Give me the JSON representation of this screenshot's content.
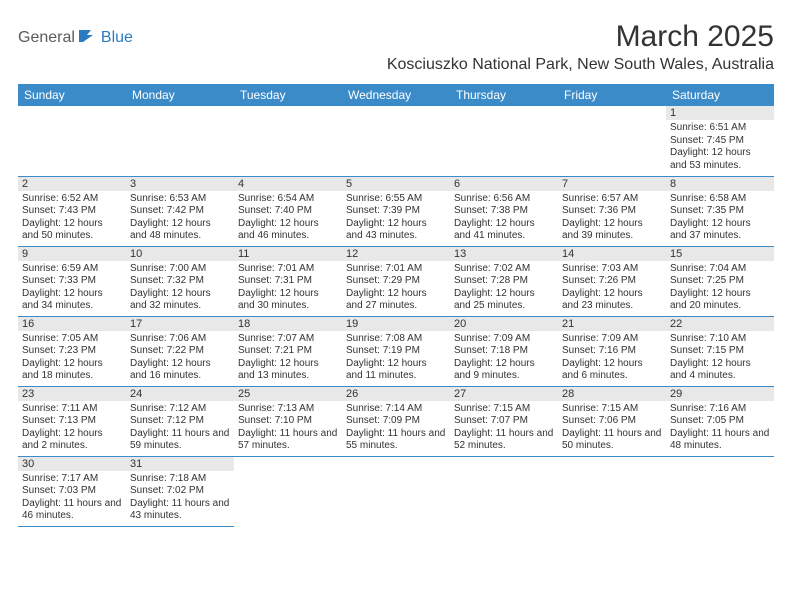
{
  "logo": {
    "general": "General",
    "blue": "Blue"
  },
  "title": "March 2025",
  "subtitle": "Kosciuszko National Park, New South Wales, Australia",
  "colors": {
    "header_bg": "#3b8bc9",
    "header_text": "#ffffff",
    "daynum_bg": "#e8e8e8",
    "border": "#3b8bc9",
    "text": "#333333",
    "logo_gray": "#5a5a5a",
    "logo_blue": "#2b7bbf"
  },
  "weekdays": [
    "Sunday",
    "Monday",
    "Tuesday",
    "Wednesday",
    "Thursday",
    "Friday",
    "Saturday"
  ],
  "weeks": [
    [
      null,
      null,
      null,
      null,
      null,
      null,
      {
        "day": "1",
        "sunrise": "Sunrise: 6:51 AM",
        "sunset": "Sunset: 7:45 PM",
        "daylight": "Daylight: 12 hours and 53 minutes."
      }
    ],
    [
      {
        "day": "2",
        "sunrise": "Sunrise: 6:52 AM",
        "sunset": "Sunset: 7:43 PM",
        "daylight": "Daylight: 12 hours and 50 minutes."
      },
      {
        "day": "3",
        "sunrise": "Sunrise: 6:53 AM",
        "sunset": "Sunset: 7:42 PM",
        "daylight": "Daylight: 12 hours and 48 minutes."
      },
      {
        "day": "4",
        "sunrise": "Sunrise: 6:54 AM",
        "sunset": "Sunset: 7:40 PM",
        "daylight": "Daylight: 12 hours and 46 minutes."
      },
      {
        "day": "5",
        "sunrise": "Sunrise: 6:55 AM",
        "sunset": "Sunset: 7:39 PM",
        "daylight": "Daylight: 12 hours and 43 minutes."
      },
      {
        "day": "6",
        "sunrise": "Sunrise: 6:56 AM",
        "sunset": "Sunset: 7:38 PM",
        "daylight": "Daylight: 12 hours and 41 minutes."
      },
      {
        "day": "7",
        "sunrise": "Sunrise: 6:57 AM",
        "sunset": "Sunset: 7:36 PM",
        "daylight": "Daylight: 12 hours and 39 minutes."
      },
      {
        "day": "8",
        "sunrise": "Sunrise: 6:58 AM",
        "sunset": "Sunset: 7:35 PM",
        "daylight": "Daylight: 12 hours and 37 minutes."
      }
    ],
    [
      {
        "day": "9",
        "sunrise": "Sunrise: 6:59 AM",
        "sunset": "Sunset: 7:33 PM",
        "daylight": "Daylight: 12 hours and 34 minutes."
      },
      {
        "day": "10",
        "sunrise": "Sunrise: 7:00 AM",
        "sunset": "Sunset: 7:32 PM",
        "daylight": "Daylight: 12 hours and 32 minutes."
      },
      {
        "day": "11",
        "sunrise": "Sunrise: 7:01 AM",
        "sunset": "Sunset: 7:31 PM",
        "daylight": "Daylight: 12 hours and 30 minutes."
      },
      {
        "day": "12",
        "sunrise": "Sunrise: 7:01 AM",
        "sunset": "Sunset: 7:29 PM",
        "daylight": "Daylight: 12 hours and 27 minutes."
      },
      {
        "day": "13",
        "sunrise": "Sunrise: 7:02 AM",
        "sunset": "Sunset: 7:28 PM",
        "daylight": "Daylight: 12 hours and 25 minutes."
      },
      {
        "day": "14",
        "sunrise": "Sunrise: 7:03 AM",
        "sunset": "Sunset: 7:26 PM",
        "daylight": "Daylight: 12 hours and 23 minutes."
      },
      {
        "day": "15",
        "sunrise": "Sunrise: 7:04 AM",
        "sunset": "Sunset: 7:25 PM",
        "daylight": "Daylight: 12 hours and 20 minutes."
      }
    ],
    [
      {
        "day": "16",
        "sunrise": "Sunrise: 7:05 AM",
        "sunset": "Sunset: 7:23 PM",
        "daylight": "Daylight: 12 hours and 18 minutes."
      },
      {
        "day": "17",
        "sunrise": "Sunrise: 7:06 AM",
        "sunset": "Sunset: 7:22 PM",
        "daylight": "Daylight: 12 hours and 16 minutes."
      },
      {
        "day": "18",
        "sunrise": "Sunrise: 7:07 AM",
        "sunset": "Sunset: 7:21 PM",
        "daylight": "Daylight: 12 hours and 13 minutes."
      },
      {
        "day": "19",
        "sunrise": "Sunrise: 7:08 AM",
        "sunset": "Sunset: 7:19 PM",
        "daylight": "Daylight: 12 hours and 11 minutes."
      },
      {
        "day": "20",
        "sunrise": "Sunrise: 7:09 AM",
        "sunset": "Sunset: 7:18 PM",
        "daylight": "Daylight: 12 hours and 9 minutes."
      },
      {
        "day": "21",
        "sunrise": "Sunrise: 7:09 AM",
        "sunset": "Sunset: 7:16 PM",
        "daylight": "Daylight: 12 hours and 6 minutes."
      },
      {
        "day": "22",
        "sunrise": "Sunrise: 7:10 AM",
        "sunset": "Sunset: 7:15 PM",
        "daylight": "Daylight: 12 hours and 4 minutes."
      }
    ],
    [
      {
        "day": "23",
        "sunrise": "Sunrise: 7:11 AM",
        "sunset": "Sunset: 7:13 PM",
        "daylight": "Daylight: 12 hours and 2 minutes."
      },
      {
        "day": "24",
        "sunrise": "Sunrise: 7:12 AM",
        "sunset": "Sunset: 7:12 PM",
        "daylight": "Daylight: 11 hours and 59 minutes."
      },
      {
        "day": "25",
        "sunrise": "Sunrise: 7:13 AM",
        "sunset": "Sunset: 7:10 PM",
        "daylight": "Daylight: 11 hours and 57 minutes."
      },
      {
        "day": "26",
        "sunrise": "Sunrise: 7:14 AM",
        "sunset": "Sunset: 7:09 PM",
        "daylight": "Daylight: 11 hours and 55 minutes."
      },
      {
        "day": "27",
        "sunrise": "Sunrise: 7:15 AM",
        "sunset": "Sunset: 7:07 PM",
        "daylight": "Daylight: 11 hours and 52 minutes."
      },
      {
        "day": "28",
        "sunrise": "Sunrise: 7:15 AM",
        "sunset": "Sunset: 7:06 PM",
        "daylight": "Daylight: 11 hours and 50 minutes."
      },
      {
        "day": "29",
        "sunrise": "Sunrise: 7:16 AM",
        "sunset": "Sunset: 7:05 PM",
        "daylight": "Daylight: 11 hours and 48 minutes."
      }
    ],
    [
      {
        "day": "30",
        "sunrise": "Sunrise: 7:17 AM",
        "sunset": "Sunset: 7:03 PM",
        "daylight": "Daylight: 11 hours and 46 minutes."
      },
      {
        "day": "31",
        "sunrise": "Sunrise: 7:18 AM",
        "sunset": "Sunset: 7:02 PM",
        "daylight": "Daylight: 11 hours and 43 minutes."
      },
      null,
      null,
      null,
      null,
      null
    ]
  ]
}
